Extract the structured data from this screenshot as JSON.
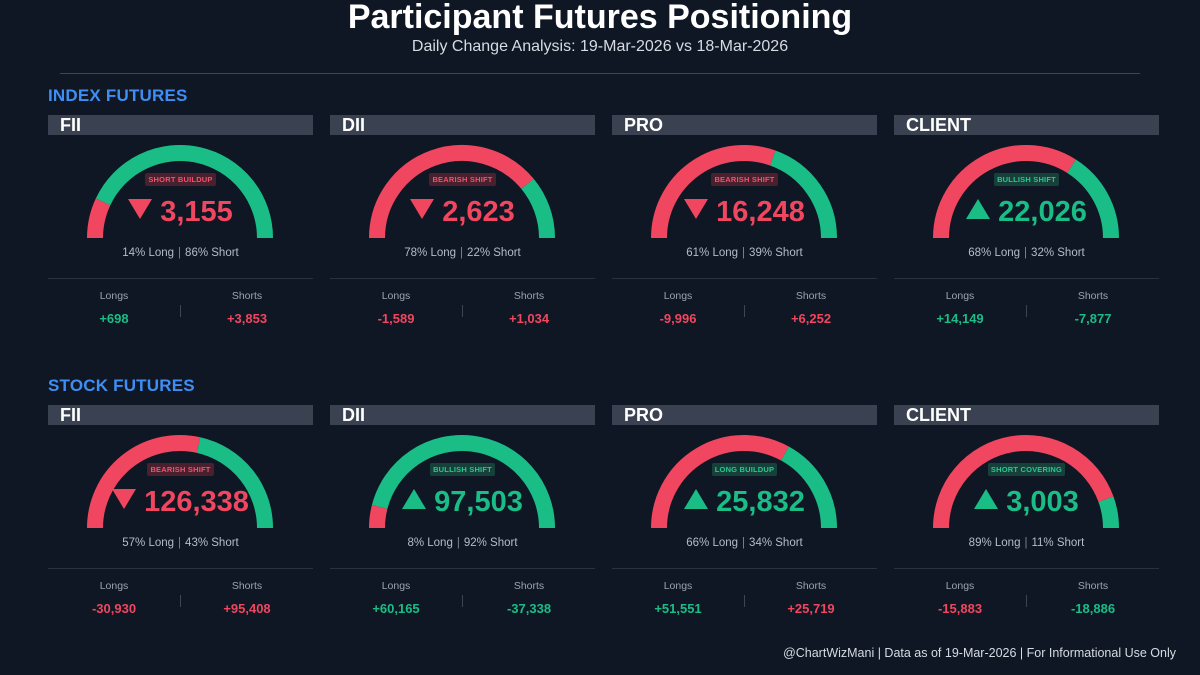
{
  "title": "Participant Futures Positioning",
  "subtitle": "Daily Change Analysis: 19-Mar-2026 vs 18-Mar-2026",
  "footer": "@ChartWizMani | Data as of 19-Mar-2026 | For Informational Use Only",
  "colors": {
    "bear": "#f0465f",
    "bull": "#1bbd86",
    "section": "#3f8ef5",
    "background": "#0f1724"
  },
  "labels": {
    "longs": "Longs",
    "shorts": "Shorts",
    "long_suffix": "Long",
    "short_suffix": "Short"
  },
  "chart_data": [
    {
      "type": "gauge",
      "section": "INDEX FUTURES",
      "cards": [
        {
          "participant": "FII",
          "signal": "SHORT BUILDUP",
          "direction": "down",
          "net": "3,155",
          "long_pct": 14,
          "short_pct": 86,
          "longs": "+698",
          "shorts": "+3,853",
          "longs_sign": "pos",
          "shorts_sign": "neg"
        },
        {
          "participant": "DII",
          "signal": "BEARISH SHIFT",
          "direction": "down",
          "net": "2,623",
          "long_pct": 78,
          "short_pct": 22,
          "longs": "-1,589",
          "shorts": "+1,034",
          "longs_sign": "neg",
          "shorts_sign": "neg"
        },
        {
          "participant": "PRO",
          "signal": "BEARISH SHIFT",
          "direction": "down",
          "net": "16,248",
          "long_pct": 61,
          "short_pct": 39,
          "longs": "-9,996",
          "shorts": "+6,252",
          "longs_sign": "neg",
          "shorts_sign": "neg"
        },
        {
          "participant": "CLIENT",
          "signal": "BULLISH SHIFT",
          "direction": "up",
          "net": "22,026",
          "long_pct": 68,
          "short_pct": 32,
          "longs": "+14,149",
          "shorts": "-7,877",
          "longs_sign": "pos",
          "shorts_sign": "pos"
        }
      ]
    },
    {
      "type": "gauge",
      "section": "STOCK FUTURES",
      "cards": [
        {
          "participant": "FII",
          "signal": "BEARISH SHIFT",
          "direction": "down",
          "net": "126,338",
          "long_pct": 57,
          "short_pct": 43,
          "longs": "-30,930",
          "shorts": "+95,408",
          "longs_sign": "neg",
          "shorts_sign": "neg"
        },
        {
          "participant": "DII",
          "signal": "BULLISH SHIFT",
          "direction": "up",
          "net": "97,503",
          "long_pct": 8,
          "short_pct": 92,
          "longs": "+60,165",
          "shorts": "-37,338",
          "longs_sign": "pos",
          "shorts_sign": "pos"
        },
        {
          "participant": "PRO",
          "signal": "LONG BUILDUP",
          "direction": "up",
          "net": "25,832",
          "long_pct": 66,
          "short_pct": 34,
          "longs": "+51,551",
          "shorts": "+25,719",
          "longs_sign": "pos",
          "shorts_sign": "neg"
        },
        {
          "participant": "CLIENT",
          "signal": "SHORT COVERING",
          "direction": "up",
          "net": "3,003",
          "long_pct": 89,
          "short_pct": 11,
          "longs": "-15,883",
          "shorts": "-18,886",
          "longs_sign": "neg",
          "shorts_sign": "pos"
        }
      ]
    }
  ]
}
